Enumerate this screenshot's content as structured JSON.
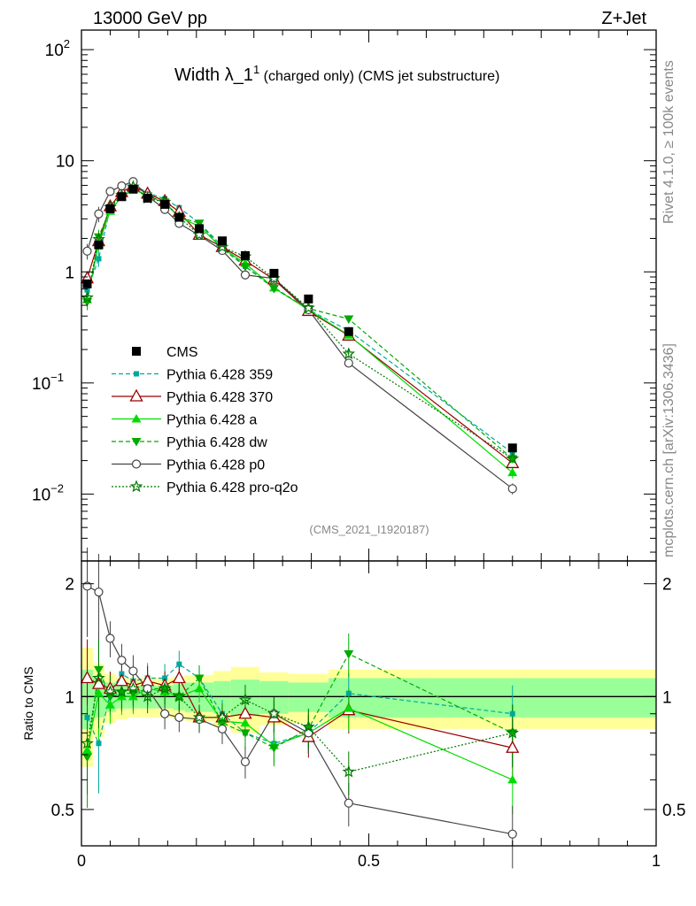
{
  "header": {
    "left": "13000 GeV pp",
    "right": "Z+Jet"
  },
  "title": {
    "prefix": "Width ",
    "lambda": "λ",
    "suffix": "_1",
    "superscript": "1",
    "small": " (charged only) (CMS jet substructure)"
  },
  "side_labels": {
    "rivet": "Rivet 4.1.0, ≥ 100k events",
    "mcplots": "mcplots.cern.ch [arXiv:1306.3436]"
  },
  "analysis_id": "(CMS_2021_I1920187)",
  "ratio_ylabel": "Ratio to CMS",
  "colors": {
    "cms": "#000000",
    "p359": "#00a89c",
    "p370": "#9b0000",
    "pa": "#00dd00",
    "pdw": "#00aa00",
    "pp0": "#444444",
    "pq2o": "#007700",
    "band_yellow": "#ffff99",
    "band_green": "#99ff99"
  },
  "chart_data": {
    "type": "scatter",
    "x_label": "",
    "xlim": [
      0,
      1
    ],
    "x_ticks": [
      "0",
      "0.5",
      "1"
    ],
    "main_ylim": [
      0.0025,
      150
    ],
    "main_y_ticks": [
      {
        "value": 100,
        "base": "10",
        "exp": "2"
      },
      {
        "value": 10,
        "base": "10",
        "exp": ""
      },
      {
        "value": 1,
        "base": "1",
        "exp": ""
      },
      {
        "value": 0.1,
        "base": "10",
        "exp": "−1"
      },
      {
        "value": 0.01,
        "base": "10",
        "exp": "−2"
      }
    ],
    "ratio_ylim": [
      0.4,
      2.3
    ],
    "ratio_y_ticks": [
      "2",
      "1",
      "0.5"
    ],
    "x": [
      0.01,
      0.03,
      0.05,
      0.07,
      0.09,
      0.115,
      0.145,
      0.17,
      0.205,
      0.245,
      0.285,
      0.335,
      0.395,
      0.465,
      0.75
    ],
    "cms": {
      "name": "CMS",
      "values": [
        0.78,
        1.75,
        3.7,
        4.75,
        5.55,
        4.6,
        4.05,
        3.1,
        2.45,
        1.9,
        1.4,
        0.97,
        0.57,
        0.29,
        0.026
      ],
      "band_edges": [
        0.0,
        0.02,
        0.04,
        0.06,
        0.08,
        0.1,
        0.13,
        0.16,
        0.18,
        0.23,
        0.26,
        0.31,
        0.36,
        0.43,
        0.5,
        1.0
      ],
      "band_yellow": [
        0.35,
        0.22,
        0.15,
        0.13,
        0.12,
        0.12,
        0.12,
        0.13,
        0.14,
        0.17,
        0.2,
        0.16,
        0.15,
        0.18,
        0.18
      ],
      "band_green": [
        0.18,
        0.12,
        0.09,
        0.07,
        0.07,
        0.07,
        0.07,
        0.08,
        0.09,
        0.1,
        0.11,
        0.1,
        0.09,
        0.12,
        0.12
      ]
    },
    "series": [
      {
        "name": "Pythia 6.428 359",
        "key": "p359",
        "marker": "square-small",
        "dash": "dashed",
        "ratio": [
          0.88,
          0.75,
          1.02,
          1.15,
          1.1,
          1.12,
          1.12,
          1.22,
          1.12,
          0.9,
          0.8,
          0.75,
          0.8,
          1.02,
          0.9
        ]
      },
      {
        "name": "Pythia 6.428 370",
        "key": "p370",
        "marker": "triangle-open",
        "dash": "solid",
        "ratio": [
          1.12,
          1.08,
          1.05,
          1.1,
          1.07,
          1.1,
          1.07,
          1.12,
          0.88,
          0.88,
          0.9,
          0.88,
          0.78,
          0.92,
          0.73
        ]
      },
      {
        "name": "Pythia 6.428 a",
        "key": "pa",
        "marker": "triangle-up",
        "dash": "solid",
        "ratio": [
          0.72,
          1.02,
          0.95,
          1.0,
          1.0,
          1.05,
          1.03,
          1.0,
          1.05,
          0.86,
          0.85,
          0.74,
          0.8,
          0.93,
          0.6
        ]
      },
      {
        "name": "Pythia 6.428 dw",
        "key": "pdw",
        "marker": "triangle-down",
        "dash": "dashed",
        "ratio": [
          0.69,
          1.18,
          1.0,
          1.02,
          1.02,
          1.05,
          1.05,
          1.0,
          1.12,
          0.85,
          0.8,
          0.73,
          0.82,
          1.3,
          0.8
        ]
      },
      {
        "name": "Pythia 6.428 p0",
        "key": "pp0",
        "marker": "circle-open",
        "dash": "solid",
        "ratio": [
          1.97,
          1.9,
          1.43,
          1.25,
          1.17,
          1.05,
          0.9,
          0.88,
          0.87,
          0.82,
          0.67,
          0.9,
          0.8,
          0.52,
          0.43
        ]
      },
      {
        "name": "Pythia 6.428 pro-q2o",
        "key": "pq2o",
        "marker": "star-open",
        "dash": "dotted",
        "ratio": [
          0.75,
          1.12,
          1.03,
          1.03,
          1.05,
          1.0,
          1.05,
          1.0,
          0.88,
          0.88,
          0.98,
          0.9,
          0.83,
          0.63,
          0.8
        ]
      }
    ]
  }
}
